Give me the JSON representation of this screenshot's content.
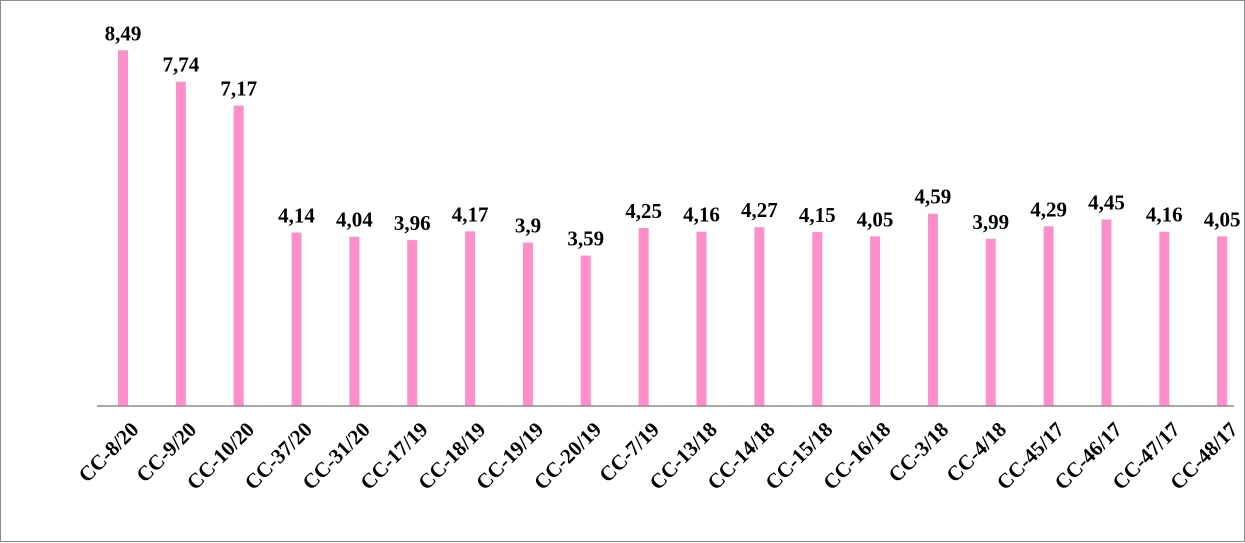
{
  "chart_data": {
    "type": "bar",
    "categories": [
      "CC-8/20",
      "CC-9/20",
      "CC-10/20",
      "CC-37/20",
      "CC-31/20",
      "CC-17/19",
      "CC-18/19",
      "CC-19/19",
      "CC-20/19",
      "CC-7/19",
      "CC-13/18",
      "CC-14/18",
      "CC-15/18",
      "CC-16/18",
      "CC-3/18",
      "CC-4/18",
      "CC-45/17",
      "CC-46/17",
      "CC-47/17",
      "CC-48/17"
    ],
    "values": [
      8.49,
      7.74,
      7.17,
      4.14,
      4.04,
      3.96,
      4.17,
      3.9,
      3.59,
      4.25,
      4.16,
      4.27,
      4.15,
      4.05,
      4.59,
      3.99,
      4.29,
      4.45,
      4.16,
      4.05
    ],
    "data_labels": [
      "8,49",
      "7,74",
      "7,17",
      "4,14",
      "4,04",
      "3,96",
      "4,17",
      "3,9",
      "3,59",
      "4,25",
      "4,16",
      "4,27",
      "4,15",
      "4,05",
      "4,59",
      "3,99",
      "4,29",
      "4,45",
      "4,16",
      "4,05"
    ],
    "ylim": [
      0,
      9
    ],
    "bar_color": "#ff8fc8",
    "grid": false,
    "legend": "none"
  }
}
